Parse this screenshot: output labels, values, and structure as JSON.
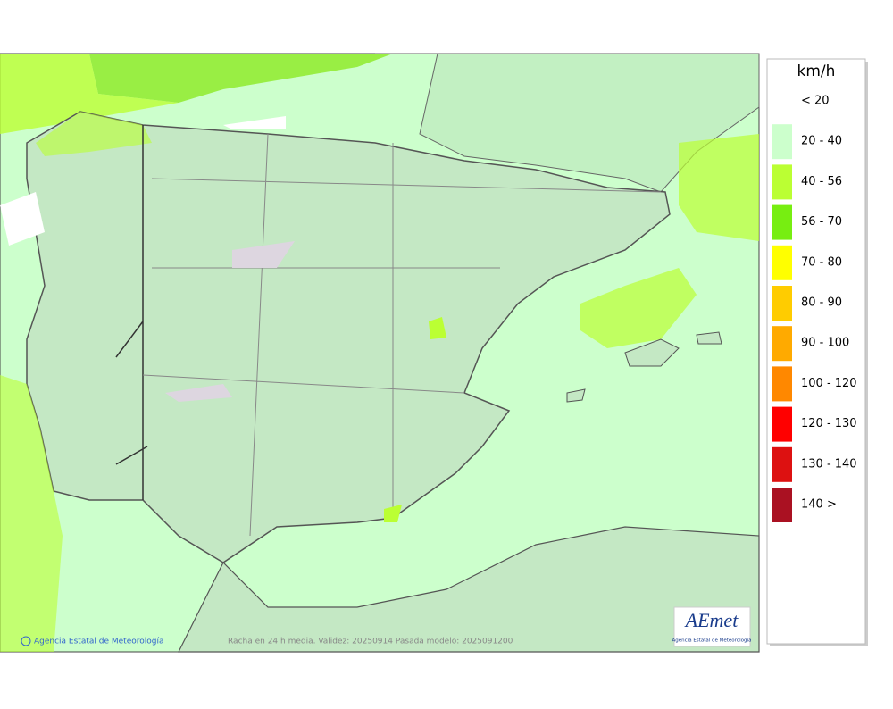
{
  "legend": {
    "title": "km/h",
    "items": [
      {
        "label": "< 20"
      },
      {
        "label": "20 - 40",
        "color": "#ccffcc"
      },
      {
        "label": "40 - 56",
        "color": "#bbff33"
      },
      {
        "label": "56 - 70",
        "color": "#77ee11"
      },
      {
        "label": "70 - 80",
        "color": "#ffff00"
      },
      {
        "label": "80 - 90",
        "color": "#ffcc00"
      },
      {
        "label": "90 - 100",
        "color": "#ffaa00"
      },
      {
        "label": "100 - 120",
        "color": "#ff8800"
      },
      {
        "label": "120 - 130",
        "color": "#ff0000"
      },
      {
        "label": "130 - 140",
        "color": "#dd1111"
      },
      {
        "label": "140 >",
        "color": "#aa1122"
      }
    ]
  },
  "footer": {
    "credit": "Agencia Estatal de Meteorología",
    "caption": "Racha en 24 h media. Validez: 20250914 Pasada modelo: 2025091200"
  },
  "logo": {
    "mark": "AEmet",
    "text": "Agencia Estatal de Meteorología"
  }
}
